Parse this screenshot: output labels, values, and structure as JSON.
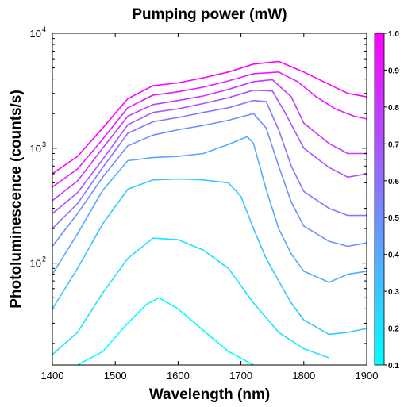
{
  "chart_data": {
    "type": "line",
    "title": "Pumping power (mW)",
    "xlabel": "Wavelength (nm)",
    "ylabel": "Photoluminescence (counts/s)",
    "x_scale": "linear",
    "y_scale": "log",
    "xlim": [
      1400,
      1900
    ],
    "ylim": [
      13,
      10000
    ],
    "x_ticks": [
      1400,
      1500,
      1600,
      1700,
      1800,
      1900
    ],
    "x_tick_labels": [
      "1400",
      "1500",
      "1600",
      "1700",
      "1800",
      "1900"
    ],
    "y_ticks": [
      {
        "base": "10",
        "exp": "2",
        "value": 100
      },
      {
        "base": "10",
        "exp": "3",
        "value": 1000
      },
      {
        "base": "10",
        "exp": "4",
        "value": 10000
      }
    ],
    "grid": false,
    "colorbar": {
      "min": 0.1,
      "max": 1.0,
      "color_low": "#00ffff",
      "color_high": "#ff00ff",
      "ticks": [
        "0.1",
        "0.2",
        "0.3",
        "0.4",
        "0.5",
        "0.6",
        "0.7",
        "0.8",
        "0.9",
        "1.0"
      ]
    },
    "series": [
      {
        "color_value": 0.1,
        "color": "#00ffff",
        "x": [
          1440,
          1480,
          1520,
          1550,
          1570,
          1600,
          1640,
          1680,
          1720
        ],
        "y": [
          13,
          17,
          30,
          44,
          50,
          40,
          26,
          17,
          13
        ]
      },
      {
        "color_value": 0.2,
        "color": "#1ce3ff",
        "x": [
          1400,
          1440,
          1480,
          1520,
          1560,
          1600,
          1640,
          1680,
          1720,
          1760,
          1800,
          1840
        ],
        "y": [
          16,
          25,
          55,
          110,
          165,
          160,
          130,
          90,
          45,
          25,
          18,
          15
        ]
      },
      {
        "color_value": 0.3,
        "color": "#38c7ff",
        "x": [
          1400,
          1440,
          1480,
          1520,
          1560,
          1600,
          1640,
          1680,
          1700,
          1720,
          1740,
          1760,
          1780,
          1800,
          1840,
          1870,
          1900
        ],
        "y": [
          40,
          90,
          220,
          440,
          530,
          540,
          530,
          500,
          380,
          200,
          110,
          70,
          45,
          32,
          24,
          25,
          27
        ]
      },
      {
        "color_value": 0.4,
        "color": "#55aaff",
        "x": [
          1400,
          1440,
          1480,
          1520,
          1560,
          1600,
          1640,
          1680,
          1710,
          1720,
          1740,
          1760,
          1780,
          1800,
          1840,
          1870,
          1900
        ],
        "y": [
          80,
          180,
          430,
          780,
          830,
          850,
          900,
          1080,
          1260,
          1100,
          440,
          200,
          120,
          85,
          68,
          80,
          85
        ]
      },
      {
        "color_value": 0.5,
        "color": "#718eff",
        "x": [
          1400,
          1440,
          1480,
          1520,
          1560,
          1600,
          1640,
          1680,
          1720,
          1740,
          1760,
          1780,
          1800,
          1840,
          1870,
          1900
        ],
        "y": [
          140,
          270,
          560,
          1050,
          1300,
          1450,
          1580,
          1750,
          2000,
          1500,
          700,
          340,
          210,
          155,
          140,
          150
        ]
      },
      {
        "color_value": 0.6,
        "color": "#8d72ff",
        "x": [
          1400,
          1440,
          1480,
          1520,
          1560,
          1600,
          1640,
          1680,
          1720,
          1740,
          1760,
          1780,
          1800,
          1840,
          1870,
          1900
        ],
        "y": [
          200,
          330,
          680,
          1350,
          1700,
          1850,
          2050,
          2250,
          2600,
          2550,
          1450,
          700,
          420,
          300,
          260,
          260
        ]
      },
      {
        "color_value": 0.7,
        "color": "#aa55ff",
        "x": [
          1400,
          1440,
          1480,
          1520,
          1560,
          1600,
          1640,
          1680,
          1720,
          1750,
          1770,
          1800,
          1840,
          1870,
          1900
        ],
        "y": [
          270,
          410,
          800,
          1600,
          2050,
          2200,
          2450,
          2750,
          3200,
          3150,
          2050,
          1000,
          680,
          560,
          600
        ]
      },
      {
        "color_value": 0.8,
        "color": "#c639ff",
        "x": [
          1400,
          1440,
          1480,
          1520,
          1560,
          1600,
          1640,
          1680,
          1720,
          1750,
          1780,
          1800,
          1840,
          1870,
          1900
        ],
        "y": [
          350,
          520,
          1000,
          1900,
          2400,
          2600,
          2850,
          3250,
          3800,
          3950,
          2800,
          1650,
          1100,
          900,
          900
        ]
      },
      {
        "color_value": 0.9,
        "color": "#e21dff",
        "x": [
          1400,
          1440,
          1480,
          1520,
          1560,
          1600,
          1640,
          1680,
          1720,
          1760,
          1790,
          1820,
          1850,
          1880,
          1900
        ],
        "y": [
          460,
          660,
          1200,
          2250,
          2900,
          3100,
          3400,
          3850,
          4450,
          4600,
          3800,
          2800,
          2200,
          1900,
          1800
        ]
      },
      {
        "color_value": 1.0,
        "color": "#ff00ff",
        "x": [
          1400,
          1440,
          1480,
          1520,
          1560,
          1600,
          1640,
          1680,
          1720,
          1760,
          1800,
          1840,
          1870,
          1900
        ],
        "y": [
          600,
          850,
          1500,
          2700,
          3500,
          3700,
          4100,
          4600,
          5400,
          5700,
          4600,
          3600,
          3000,
          2800
        ]
      }
    ]
  }
}
